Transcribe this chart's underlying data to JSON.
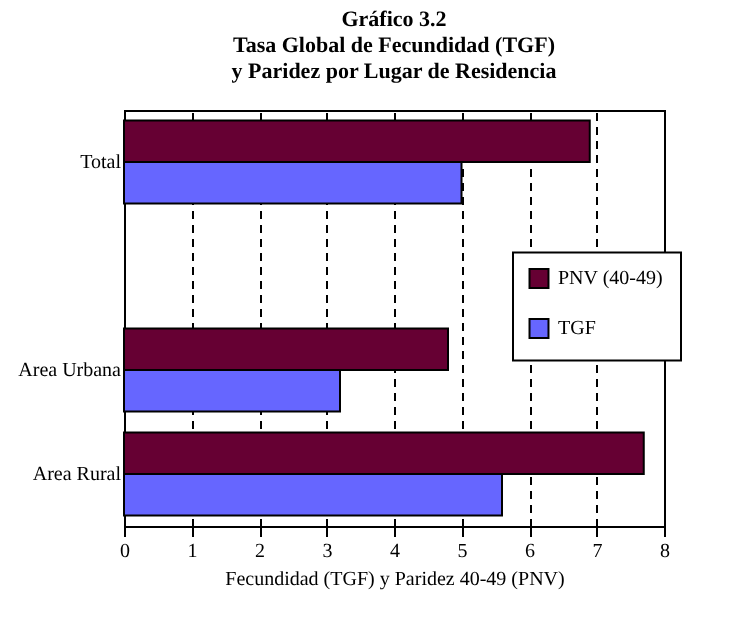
{
  "chart_data": {
    "type": "bar",
    "orientation": "horizontal",
    "title": "Gráfico 3.2",
    "subtitle": "Tasa Global de Fecundidad (TGF) y Paridez por Lugar de Residencia",
    "xlabel": "Fecundidad (TGF) y Paridez 40-49 (PNV)",
    "categories": [
      "Total",
      null,
      "Area Urbana",
      "Area Rural"
    ],
    "series": [
      {
        "name": "PNV (40-49)",
        "color": "#660033",
        "values": [
          6.9,
          null,
          4.8,
          7.7
        ]
      },
      {
        "name": "TGF",
        "color": "#6666ff",
        "values": [
          5.0,
          null,
          3.2,
          5.6
        ]
      }
    ],
    "xlim": [
      0,
      8
    ],
    "xticks": [
      0,
      1,
      2,
      3,
      4,
      5,
      6,
      7,
      8
    ],
    "grid": "x",
    "line_style": "dashed",
    "legend": "right"
  }
}
